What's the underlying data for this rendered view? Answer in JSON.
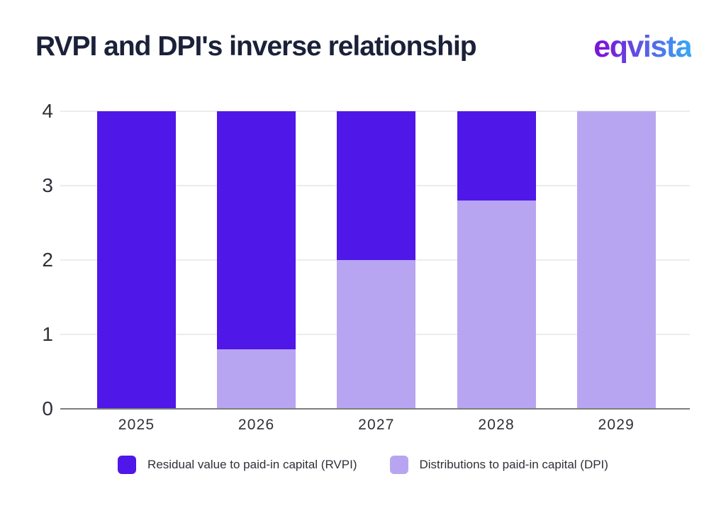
{
  "header": {
    "title": "RVPI and DPI's inverse relationship",
    "logo_text": "eqvista"
  },
  "colors": {
    "background": "#FFFFFF",
    "title_text": "#1B2139",
    "axis_label": "#2F3038",
    "gridline": "#ECECEC",
    "baseline": "#7D7D7D",
    "rvpi_bar": "#4F17E8",
    "dpi_bar": "#B8A5F2",
    "logo_gradient_start": "#7B16D9",
    "logo_gradient_end": "#38A3F5"
  },
  "chart_data": {
    "type": "bar",
    "stacked": true,
    "title": "RVPI and DPI's inverse relationship",
    "categories": [
      "2025",
      "2026",
      "2027",
      "2028",
      "2029"
    ],
    "series": [
      {
        "name": "Residual value to paid-in capital (RVPI)",
        "color": "#4F17E8",
        "values": [
          4,
          3.2,
          2,
          1.2,
          0
        ]
      },
      {
        "name": "Distributions to paid-in capital (DPI)",
        "color": "#B8A5F2",
        "values": [
          0,
          0.8,
          2,
          2.8,
          4
        ]
      }
    ],
    "xlabel": "",
    "ylabel": "",
    "ylim": [
      0,
      4
    ],
    "yticks": [
      0,
      1,
      2,
      3,
      4
    ],
    "grid": true,
    "legend_position": "bottom"
  }
}
